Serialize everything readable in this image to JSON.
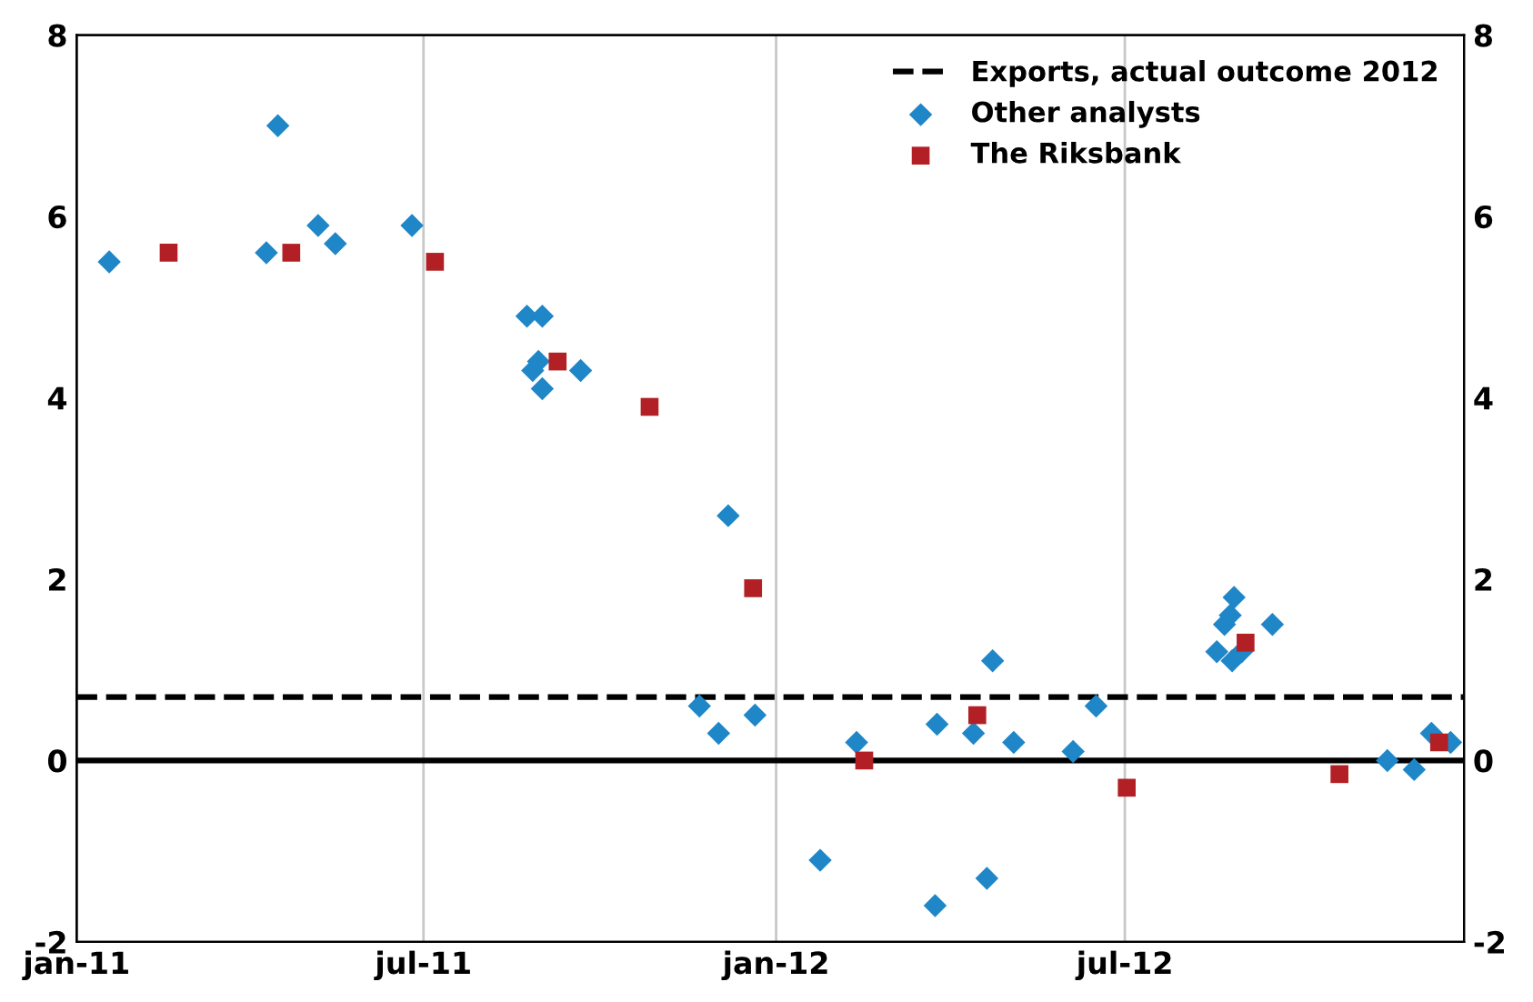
{
  "chart_data": {
    "type": "scatter",
    "xlim": [
      "2011-01-01",
      "2012-12-25"
    ],
    "xticks": [
      {
        "value": "2011-01-01",
        "label": "jan-11"
      },
      {
        "value": "2011-07-01",
        "label": "jul-11"
      },
      {
        "value": "2012-01-01",
        "label": "jan-12"
      },
      {
        "value": "2012-07-01",
        "label": "jul-12"
      }
    ],
    "ylim": [
      -2,
      8
    ],
    "yticks": [
      -2,
      0,
      2,
      4,
      6,
      8
    ],
    "y2lim": [
      -2,
      8
    ],
    "y2ticks": [
      -2,
      0,
      2,
      4,
      6,
      8
    ],
    "grid": "x",
    "legend": "top right",
    "series": [
      {
        "name": "Other analysts",
        "color": "#1f86c8",
        "marker": "diamond",
        "x": [
          "2011-01-18",
          "2011-04-10",
          "2011-04-16",
          "2011-05-07",
          "2011-05-16",
          "2011-06-25",
          "2011-08-24",
          "2011-09-01",
          "2011-08-27",
          "2011-08-30",
          "2011-09-01",
          "2011-09-21",
          "2011-11-22",
          "2011-12-02",
          "2011-12-07",
          "2011-12-21",
          "2012-01-24",
          "2012-02-12",
          "2012-03-24",
          "2012-03-25",
          "2012-04-13",
          "2012-04-20",
          "2012-04-23",
          "2012-05-04",
          "2012-06-04",
          "2012-06-16",
          "2012-08-18",
          "2012-08-22",
          "2012-08-25",
          "2012-08-27",
          "2012-08-26",
          "2012-08-31",
          "2012-09-16",
          "2012-11-15",
          "2012-11-29",
          "2012-12-08",
          "2012-12-18"
        ],
        "values": [
          5.5,
          5.6,
          7.0,
          5.9,
          5.7,
          5.9,
          4.9,
          4.9,
          4.3,
          4.4,
          4.1,
          4.3,
          0.6,
          0.3,
          2.7,
          0.5,
          -1.1,
          0.2,
          -1.6,
          0.4,
          0.3,
          -1.3,
          1.1,
          0.2,
          0.1,
          0.6,
          1.2,
          1.5,
          1.6,
          1.8,
          1.1,
          1.2,
          1.5,
          0.0,
          -0.1,
          0.3,
          0.2
        ]
      },
      {
        "name": "The Riksbank",
        "color": "#b22025",
        "marker": "square",
        "x": [
          "2011-02-18",
          "2011-04-23",
          "2011-07-07",
          "2011-09-09",
          "2011-10-27",
          "2011-12-20",
          "2012-02-16",
          "2012-04-15",
          "2012-07-02",
          "2012-09-02",
          "2012-10-21",
          "2012-12-12"
        ],
        "values": [
          5.6,
          5.6,
          5.5,
          4.4,
          3.9,
          1.9,
          0.0,
          0.5,
          -0.3,
          1.3,
          -0.15,
          0.2
        ]
      }
    ],
    "ref_lines": [
      {
        "axis": "y",
        "value": 0.7,
        "label": "Exports, actual outcome 2012",
        "color": "#000000",
        "line_style": "dashed"
      },
      {
        "axis": "y",
        "value": 0,
        "label": null,
        "color": "#000000",
        "line_style": "solid"
      }
    ]
  }
}
